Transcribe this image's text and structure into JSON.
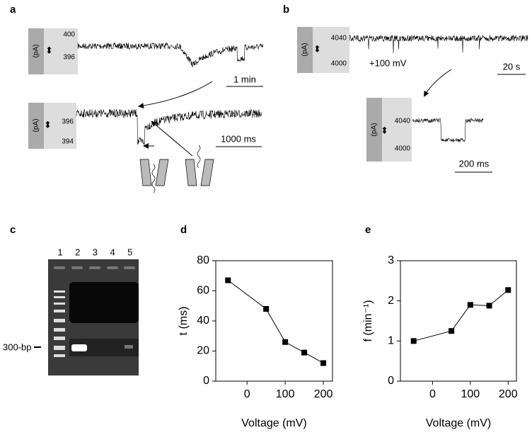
{
  "chart_data": [
    {
      "type": "line",
      "panel_label": "d",
      "xlabel": "Voltage (mV)",
      "ylabel": "t (ms)",
      "x": [
        -50,
        50,
        100,
        150,
        200
      ],
      "values": [
        67,
        48,
        26,
        19,
        12
      ],
      "color": "#000000",
      "xlim": [
        -82,
        224
      ],
      "ylim": [
        0,
        80
      ],
      "xticks": [
        0,
        100,
        200
      ],
      "yticks": [
        0,
        20,
        40,
        60,
        80
      ]
    },
    {
      "type": "line",
      "panel_label": "e",
      "xlabel": "Voltage (mV)",
      "ylabel": "f (min⁻¹)",
      "x": [
        -50,
        50,
        100,
        150,
        200
      ],
      "values": [
        1.0,
        1.25,
        1.9,
        1.88,
        2.27
      ],
      "color": "#000000",
      "xlim": [
        -85,
        222
      ],
      "ylim": [
        0,
        3
      ],
      "xticks": [
        0,
        100,
        200
      ],
      "yticks": [
        0,
        1,
        2,
        3
      ]
    }
  ],
  "panels": {
    "a": {
      "label": "a",
      "top_unit": "(pA)",
      "top_ticks": [
        "400",
        "396"
      ],
      "top_scale": "1 min",
      "bottom_unit": "(pA)",
      "bottom_ticks": [
        "396",
        "394"
      ],
      "bottom_scale": "1000 ms"
    },
    "b": {
      "label": "b",
      "top_unit": "(pA)",
      "top_ticks": [
        "4040",
        "4000"
      ],
      "voltage": "+100 mV",
      "top_scale": "20 s",
      "inset_unit": "(pA)",
      "inset_ticks": [
        "4040",
        "4000"
      ],
      "inset_scale": "200 ms"
    },
    "c": {
      "label": "c",
      "lanes": [
        "1",
        "2",
        "3",
        "4",
        "5"
      ],
      "marker": "300-bp"
    }
  }
}
